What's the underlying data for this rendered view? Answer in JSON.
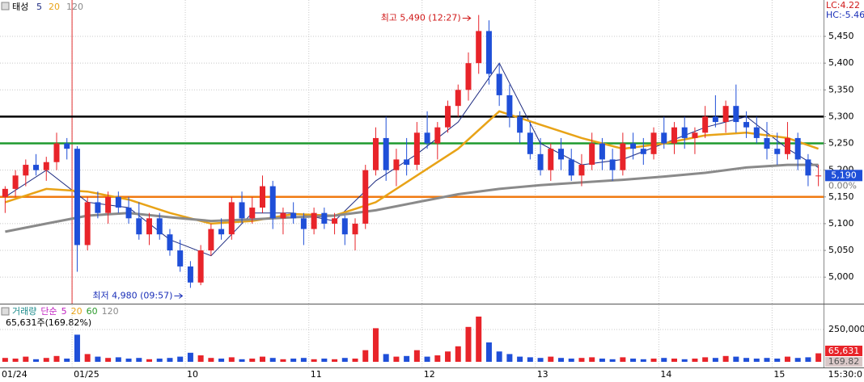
{
  "chart_data": {
    "type": "candlestick",
    "title": "태성",
    "open": [
      5150,
      5165,
      5190,
      5210,
      5200,
      5215,
      5250,
      5240,
      5060,
      5140,
      5120,
      5150,
      5130,
      5110,
      5080,
      5110,
      5080,
      5050,
      5020,
      4990,
      5050,
      5090,
      5080,
      5140,
      5110,
      5130,
      5170,
      5110,
      5120,
      5110,
      5090,
      5120,
      5100,
      5110,
      5080,
      5100,
      5200,
      5260,
      5200,
      5220,
      5210,
      5270,
      5250,
      5280,
      5320,
      5350,
      5400,
      5460,
      5380,
      5340,
      5300,
      5270,
      5230,
      5200,
      5240,
      5220,
      5190,
      5210,
      5250,
      5220,
      5200,
      5250,
      5240,
      5230,
      5270,
      5250,
      5280,
      5260,
      5270,
      5300,
      5290,
      5320,
      5290,
      5280,
      5260,
      5240,
      5230,
      5260,
      5220,
      5190
    ],
    "high": [
      5170,
      5200,
      5220,
      5230,
      5225,
      5270,
      5260,
      5245,
      5150,
      5160,
      5160,
      5160,
      5150,
      5140,
      5120,
      5120,
      5090,
      5070,
      5030,
      5060,
      5100,
      5110,
      5150,
      5160,
      5150,
      5190,
      5180,
      5130,
      5140,
      5120,
      5130,
      5130,
      5120,
      5115,
      5110,
      5210,
      5280,
      5300,
      5240,
      5260,
      5290,
      5310,
      5290,
      5330,
      5360,
      5420,
      5490,
      5480,
      5400,
      5360,
      5310,
      5290,
      5260,
      5250,
      5260,
      5240,
      5230,
      5270,
      5260,
      5240,
      5270,
      5270,
      5260,
      5280,
      5300,
      5290,
      5300,
      5280,
      5320,
      5340,
      5330,
      5360,
      5310,
      5300,
      5290,
      5270,
      5290,
      5270,
      5230,
      5210
    ],
    "low": [
      5120,
      5150,
      5170,
      5190,
      5180,
      5200,
      5220,
      5010,
      5050,
      5110,
      5100,
      5120,
      5100,
      5070,
      5060,
      5070,
      5040,
      5010,
      4980,
      4985,
      5040,
      5070,
      5070,
      5100,
      5100,
      5120,
      5090,
      5080,
      5100,
      5060,
      5080,
      5090,
      5080,
      5060,
      5050,
      5090,
      5190,
      5180,
      5170,
      5190,
      5200,
      5240,
      5220,
      5270,
      5300,
      5330,
      5380,
      5360,
      5320,
      5280,
      5250,
      5220,
      5190,
      5180,
      5200,
      5180,
      5170,
      5200,
      5200,
      5180,
      5190,
      5220,
      5210,
      5220,
      5240,
      5230,
      5240,
      5230,
      5260,
      5280,
      5270,
      5270,
      5260,
      5250,
      5220,
      5210,
      5220,
      5200,
      5170,
      5170
    ],
    "close": [
      5165,
      5190,
      5210,
      5200,
      5215,
      5250,
      5240,
      5060,
      5140,
      5120,
      5150,
      5130,
      5110,
      5080,
      5110,
      5080,
      5050,
      5020,
      4990,
      5050,
      5090,
      5080,
      5140,
      5110,
      5130,
      5170,
      5110,
      5120,
      5110,
      5090,
      5120,
      5100,
      5110,
      5080,
      5100,
      5200,
      5260,
      5200,
      5220,
      5210,
      5270,
      5250,
      5280,
      5320,
      5350,
      5400,
      5460,
      5380,
      5340,
      5300,
      5270,
      5230,
      5200,
      5240,
      5220,
      5190,
      5210,
      5250,
      5220,
      5200,
      5250,
      5240,
      5230,
      5270,
      5250,
      5280,
      5260,
      5270,
      5300,
      5290,
      5320,
      5290,
      5280,
      5260,
      5240,
      5230,
      5260,
      5220,
      5190,
      5190
    ],
    "up_color": "#e8242a",
    "down_color": "#1f4fd8",
    "xlim": [
      -0.5,
      79.5
    ],
    "ylim": [
      4955,
      5518
    ],
    "yticks": [
      {
        "value": 5000,
        "label": "5,000"
      },
      {
        "value": 5050,
        "label": "5,050"
      },
      {
        "value": 5100,
        "label": "5,100"
      },
      {
        "value": 5150,
        "label": "5,150"
      },
      {
        "value": 5200,
        "label": "5,200"
      },
      {
        "value": 5250,
        "label": "5,250"
      },
      {
        "value": 5300,
        "label": "5,300"
      },
      {
        "value": 5350,
        "label": "5,350"
      },
      {
        "value": 5400,
        "label": "5,400"
      },
      {
        "value": 5450,
        "label": "5,450"
      }
    ],
    "xticks": [
      {
        "value": 0,
        "label": "01/24"
      },
      {
        "value": 7,
        "label": "01/25"
      },
      {
        "value": 18,
        "label": "10"
      },
      {
        "value": 30,
        "label": "11"
      },
      {
        "value": 41,
        "label": "12"
      },
      {
        "value": 52,
        "label": "13"
      },
      {
        "value": 64,
        "label": "14"
      },
      {
        "value": 75,
        "label": "15"
      }
    ],
    "grid": true,
    "series": [
      {
        "name": "5",
        "color": "#1c2a80",
        "width": 1,
        "x": [
          0,
          4,
          8,
          12,
          16,
          20,
          24,
          28,
          32,
          36,
          40,
          44,
          48,
          52,
          56,
          60,
          64,
          68,
          72,
          76,
          79
        ],
        "values": [
          5150,
          5200,
          5140,
          5130,
          5070,
          5040,
          5120,
          5120,
          5105,
          5180,
          5230,
          5290,
          5400,
          5250,
          5210,
          5220,
          5250,
          5280,
          5300,
          5240,
          5205
        ]
      },
      {
        "name": "20",
        "color": "#e8a317",
        "width": 2.5,
        "x": [
          0,
          4,
          8,
          12,
          16,
          20,
          24,
          28,
          32,
          36,
          40,
          44,
          48,
          52,
          56,
          60,
          64,
          68,
          72,
          76,
          79
        ],
        "values": [
          5140,
          5165,
          5160,
          5145,
          5120,
          5100,
          5105,
          5118,
          5115,
          5140,
          5190,
          5240,
          5310,
          5285,
          5260,
          5240,
          5250,
          5265,
          5270,
          5260,
          5240
        ]
      },
      {
        "name": "120",
        "color": "#8a8a8a",
        "width": 3,
        "x": [
          0,
          4,
          8,
          12,
          16,
          20,
          24,
          28,
          32,
          36,
          40,
          44,
          48,
          52,
          56,
          60,
          64,
          68,
          72,
          76,
          79
        ],
        "values": [
          5085,
          5100,
          5115,
          5120,
          5112,
          5105,
          5108,
          5112,
          5115,
          5125,
          5140,
          5155,
          5165,
          5172,
          5177,
          5182,
          5188,
          5195,
          5205,
          5210,
          5210
        ]
      }
    ],
    "hlines": [
      {
        "value": 5300,
        "color": "#000000"
      },
      {
        "value": 5250,
        "color": "#1e9a2e"
      },
      {
        "value": 5150,
        "color": "#f07a10"
      }
    ],
    "marker_line": {
      "x": 7,
      "color": "#e03030"
    },
    "annotations": [
      {
        "text": "최고 5,490 (12:27)",
        "x": 46,
        "value": 5490,
        "color": "#d01818"
      },
      {
        "text": "최저 4,980 (09:57)",
        "x": 18,
        "value": 4980,
        "color": "#1a2fb8"
      }
    ],
    "info": [
      {
        "text": "LC:4.22",
        "color": "#d01818"
      },
      {
        "text": "HC:-5.46",
        "color": "#1a2fb8"
      }
    ],
    "last_price": {
      "label": "5,190",
      "change": "0.00%"
    },
    "volume": {
      "legend": [
        {
          "text": "거래량",
          "color": "#1a8a8a"
        },
        {
          "text": "단순",
          "color": "#c020c0"
        },
        {
          "text": "5",
          "color": "#c020c0"
        },
        {
          "text": "20",
          "color": "#e8a317"
        },
        {
          "text": "60",
          "color": "#2a9a2a"
        },
        {
          "text": "120",
          "color": "#8a8a8a"
        }
      ],
      "summary": "65,631주(169.82%)",
      "values": [
        30000,
        25000,
        40000,
        20000,
        30000,
        45000,
        25000,
        210000,
        60000,
        40000,
        30000,
        35000,
        25000,
        30000,
        20000,
        25000,
        30000,
        40000,
        70000,
        50000,
        30000,
        25000,
        35000,
        20000,
        25000,
        40000,
        30000,
        20000,
        25000,
        30000,
        20000,
        25000,
        20000,
        30000,
        25000,
        90000,
        260000,
        60000,
        40000,
        45000,
        90000,
        40000,
        50000,
        80000,
        120000,
        270000,
        350000,
        150000,
        80000,
        60000,
        40000,
        35000,
        30000,
        40000,
        30000,
        25000,
        30000,
        35000,
        25000,
        20000,
        35000,
        25000,
        20000,
        25000,
        30000,
        25000,
        20000,
        25000,
        35000,
        30000,
        45000,
        40000,
        30000,
        25000,
        30000,
        25000,
        40000,
        30000,
        35000,
        65631
      ],
      "ylim": [
        0,
        425000
      ],
      "yticks": [
        {
          "value": 250000,
          "label": "250,000"
        }
      ],
      "last_label": "65,631",
      "ratio_label": "169.82"
    },
    "time_label": "15:30:0"
  }
}
